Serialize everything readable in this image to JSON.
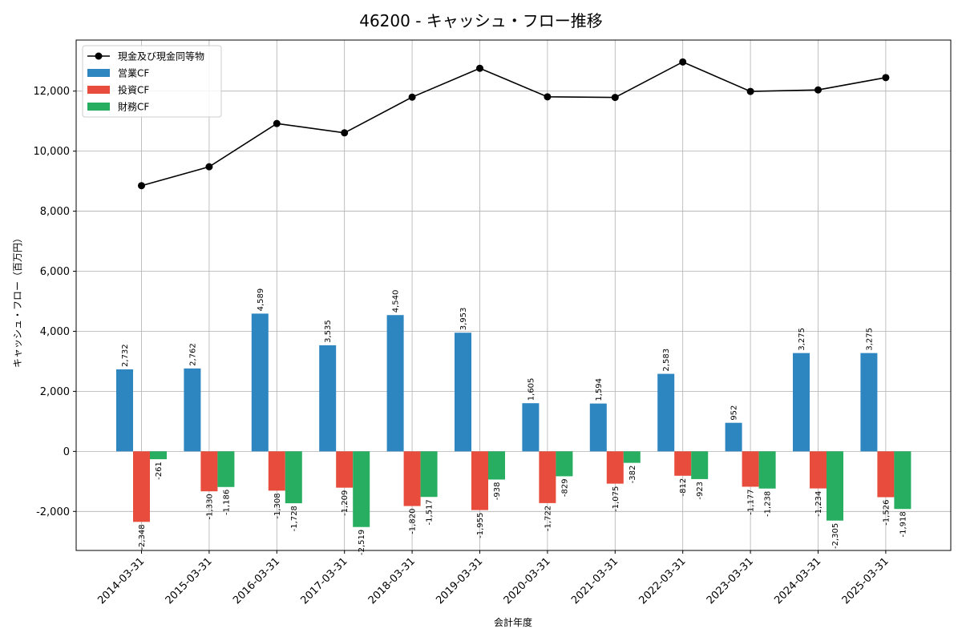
{
  "chart_data": {
    "type": "bar",
    "title": "46200 - キャッシュ・フロー推移",
    "xlabel": "会計年度",
    "ylabel": "キャッシュ・フロー（百万円）",
    "ylim": [
      -3300,
      13700
    ],
    "yticks": [
      -2000,
      0,
      2000,
      4000,
      6000,
      8000,
      10000,
      12000
    ],
    "ytick_labels": [
      "-2,000",
      "0",
      "2,000",
      "4,000",
      "6,000",
      "8,000",
      "10,000",
      "12,000"
    ],
    "grid": true,
    "legend_position": "top-left",
    "categories": [
      "2014-03-31",
      "2015-03-31",
      "2016-03-31",
      "2017-03-31",
      "2018-03-31",
      "2019-03-31",
      "2020-03-31",
      "2021-03-31",
      "2022-03-31",
      "2023-03-31",
      "2024-03-31",
      "2025-03-31"
    ],
    "series": [
      {
        "name": "営業CF",
        "kind": "bar",
        "color": "#2e86c1",
        "values": [
          2732,
          2762,
          4589,
          3535,
          4540,
          3953,
          1605,
          1594,
          2583,
          952,
          3275,
          3275
        ],
        "labels": [
          "2,732",
          "2,762",
          "4,589",
          "3,535",
          "4,540",
          "3,953",
          "1,605",
          "1,594",
          "2,583",
          "952",
          "3,275",
          "3,275"
        ]
      },
      {
        "name": "投資CF",
        "kind": "bar",
        "color": "#e74c3c",
        "values": [
          -2348,
          -1330,
          -1308,
          -1209,
          -1820,
          -1955,
          -1722,
          -1075,
          -812,
          -1177,
          -1234,
          -1526
        ],
        "labels": [
          "-2,348",
          "-1,330",
          "-1,308",
          "-1,209",
          "-1,820",
          "-1,955",
          "-1,722",
          "-1,075",
          "-812",
          "-1,177",
          "-1,234",
          "-1,526"
        ]
      },
      {
        "name": "財務CF",
        "kind": "bar",
        "color": "#27ae60",
        "values": [
          -261,
          -1186,
          -1728,
          -2519,
          -1517,
          -938,
          -829,
          -382,
          -923,
          -1238,
          -2305,
          -1918
        ],
        "labels": [
          "-261",
          "-1,186",
          "-1,728",
          "-2,519",
          "-1,517",
          "-938",
          "-829",
          "-382",
          "-923",
          "-1,238",
          "-2,305",
          "-1,918"
        ]
      },
      {
        "name": "現金及び現金同等物",
        "kind": "line",
        "color": "#000000",
        "values": [
          8850,
          9480,
          10920,
          10610,
          11800,
          12760,
          11810,
          11790,
          12970,
          11990,
          12040,
          12450
        ]
      }
    ]
  }
}
